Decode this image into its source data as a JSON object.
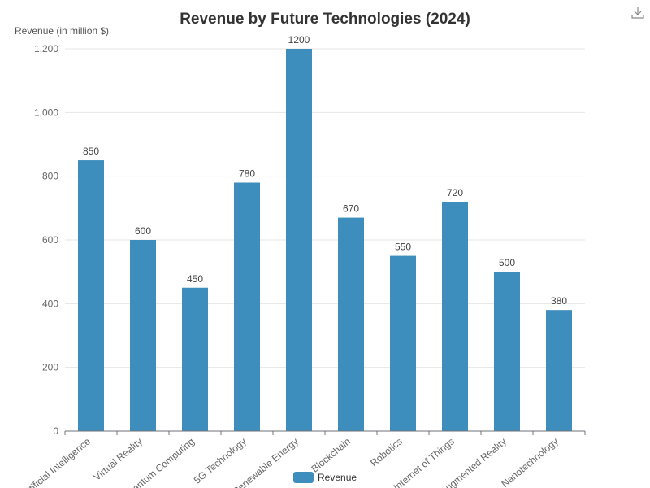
{
  "toolbox": {
    "download_icon": "download-icon"
  },
  "chart_data": {
    "type": "bar",
    "title": "Revenue by Future Technologies (2024)",
    "ylabel": "Revenue (in million $)",
    "xlabel": "",
    "categories": [
      "Artificial Intelligence",
      "Virtual Reality",
      "Quantum Computing",
      "5G Technology",
      "Renewable Energy",
      "Blockchain",
      "Robotics",
      "Internet of Things",
      "Augmented Reality",
      "Nanotechnology"
    ],
    "series": [
      {
        "name": "Revenue",
        "values": [
          850,
          600,
          450,
          780,
          1200,
          670,
          550,
          720,
          500,
          380
        ]
      }
    ],
    "ylim": [
      0,
      1200
    ],
    "yticks": [
      0,
      200,
      400,
      600,
      800,
      1000,
      1200
    ],
    "ytick_labels": [
      "0",
      "200",
      "400",
      "600",
      "800",
      "1,000",
      "1,200"
    ],
    "data_labels": [
      "850",
      "600",
      "450",
      "780",
      "1200",
      "670",
      "550",
      "720",
      "500",
      "380"
    ],
    "grid": true,
    "legend_position": "bottom",
    "bar_color": "#3d8ebd"
  }
}
